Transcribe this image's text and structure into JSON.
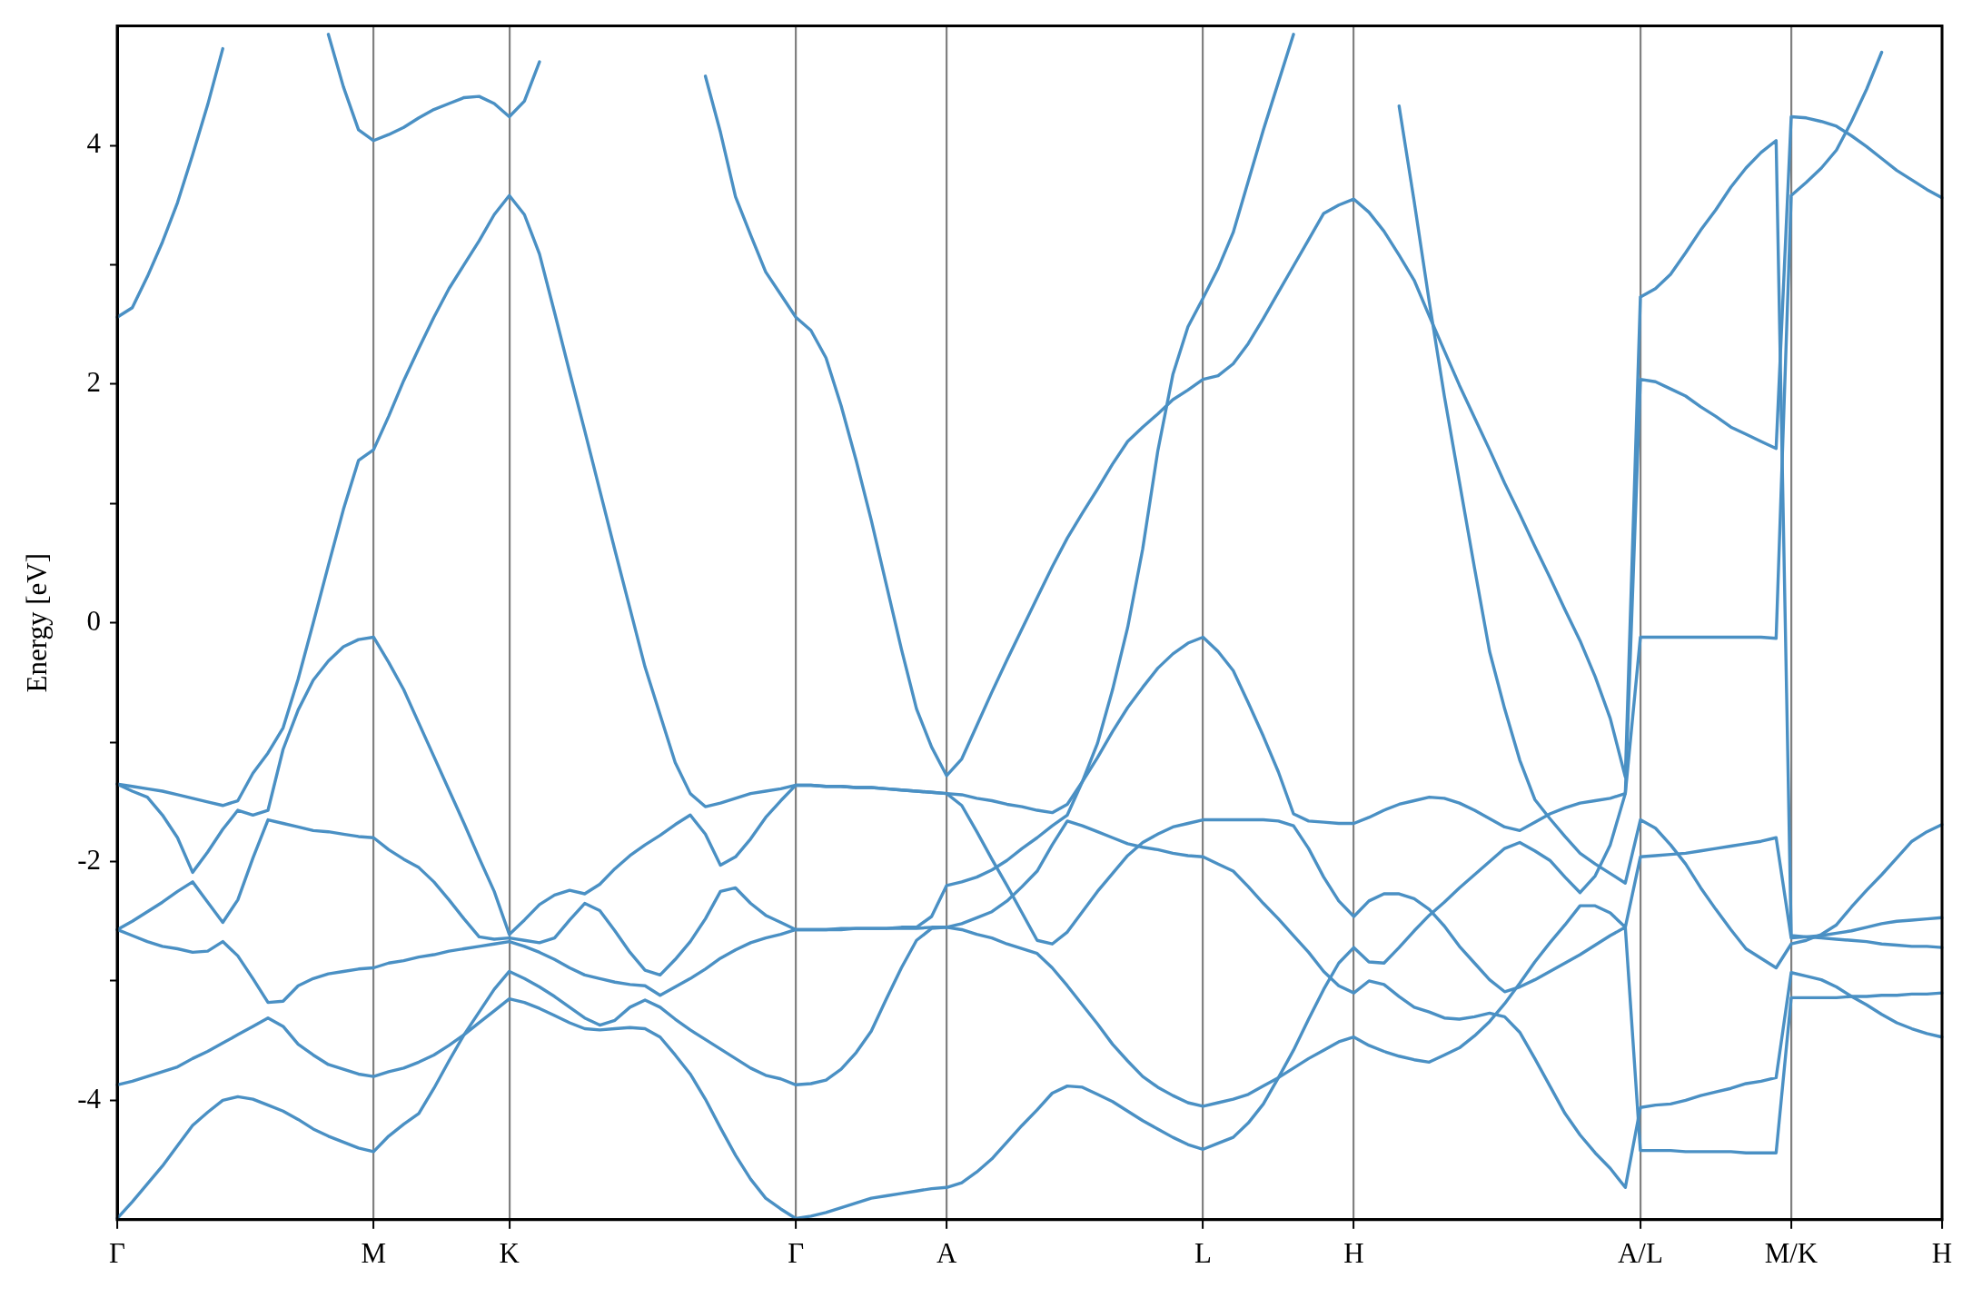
{
  "chart_data": {
    "type": "line",
    "ylabel": "Energy [eV]",
    "ylim": [
      -5,
      5
    ],
    "categories": [
      "Γ",
      null,
      null,
      null,
      null,
      null,
      null,
      null,
      null,
      null,
      null,
      null,
      null,
      null,
      null,
      null,
      null,
      "M",
      null,
      null,
      null,
      null,
      null,
      null,
      null,
      null,
      "K",
      null,
      null,
      null,
      null,
      null,
      null,
      null,
      null,
      null,
      null,
      null,
      null,
      null,
      null,
      null,
      null,
      null,
      null,
      "Γ",
      null,
      null,
      null,
      null,
      null,
      null,
      null,
      null,
      null,
      "A",
      null,
      null,
      null,
      null,
      null,
      null,
      null,
      null,
      null,
      null,
      null,
      null,
      null,
      null,
      null,
      null,
      "L",
      null,
      null,
      null,
      null,
      null,
      null,
      null,
      null,
      null,
      "H",
      null,
      null,
      null,
      null,
      null,
      null,
      null,
      null,
      null,
      null,
      null,
      null,
      null,
      null,
      null,
      null,
      null,
      null,
      "A/L",
      null,
      null,
      null,
      null,
      null,
      null,
      null,
      null,
      null,
      "M/K",
      null,
      null,
      null,
      null,
      null,
      null,
      null,
      null,
      null,
      "H"
    ],
    "yticks": [
      -4,
      {
        "value": -3,
        "label": null
      },
      -2,
      {
        "value": -1,
        "label": null
      },
      0,
      {
        "value": 1,
        "label": null
      },
      2,
      {
        "value": 3,
        "label": null
      },
      4
    ],
    "grid": "x",
    "legend": false,
    "marker": "none",
    "line_style": "solid",
    "series": [
      {
        "color": "#4a90c4",
        "values": [
          -4.99,
          -4.85,
          -4.7,
          -4.55,
          -4.38,
          -4.21,
          -4.1,
          -4.0,
          -3.97,
          -3.99,
          -4.04,
          -4.09,
          -4.16,
          -4.24,
          -4.3,
          -4.35,
          -4.4,
          -4.43,
          -4.3,
          -4.2,
          -4.11,
          -3.9,
          -3.67,
          -3.45,
          -3.35,
          -3.25,
          -3.15,
          -3.18,
          -3.23,
          -3.29,
          -3.35,
          -3.4,
          -3.41,
          -3.4,
          -3.39,
          -3.4,
          -3.47,
          -3.62,
          -3.78,
          -3.99,
          -4.23,
          -4.46,
          -4.66,
          -4.82,
          -4.91,
          -4.99,
          -4.97,
          -4.94,
          -4.9,
          -4.86,
          -4.82,
          -4.8,
          -4.78,
          -4.76,
          -4.74,
          -4.73,
          -4.69,
          -4.6,
          -4.49,
          -4.35,
          -4.21,
          -4.08,
          -3.94,
          -3.88,
          -3.89,
          -3.95,
          -4.01,
          -4.09,
          -4.17,
          -4.24,
          -4.31,
          -4.37,
          -4.41,
          -4.36,
          -4.31,
          -4.19,
          -4.03,
          -3.81,
          -3.58,
          -3.32,
          -3.07,
          -2.85,
          -2.72,
          -2.84,
          -2.85,
          -2.72,
          -2.58,
          -2.45,
          -2.34,
          -2.22,
          -2.11,
          -2.0,
          -1.89,
          -1.84,
          -1.91,
          -1.99,
          -2.13,
          -2.26,
          -2.12,
          -1.86,
          -1.43,
          -0.12,
          -0.12,
          -0.12,
          -0.12,
          -0.12,
          -0.12,
          -0.12,
          -0.12,
          -0.12,
          -0.13,
          3.58,
          3.69,
          3.81,
          3.96,
          4.2,
          4.47,
          4.78,
          null,
          null,
          null,
          null
        ]
      },
      {
        "color": "#4a90c4",
        "values": [
          -3.87,
          -3.84,
          -3.8,
          -3.76,
          -3.72,
          -3.65,
          -3.59,
          -3.52,
          -3.45,
          -3.38,
          -3.31,
          -3.38,
          -3.53,
          -3.62,
          -3.7,
          -3.74,
          -3.78,
          -3.8,
          -3.76,
          -3.73,
          -3.68,
          -3.62,
          -3.54,
          -3.45,
          -3.26,
          -3.07,
          -2.92,
          -2.98,
          -3.05,
          -3.13,
          -3.22,
          -3.31,
          -3.37,
          -3.33,
          -3.22,
          -3.16,
          -3.22,
          -3.32,
          -3.41,
          -3.49,
          -3.57,
          -3.65,
          -3.73,
          -3.79,
          -3.82,
          -3.87,
          -3.86,
          -3.83,
          -3.74,
          -3.6,
          -3.42,
          -3.15,
          -2.89,
          -2.66,
          -2.56,
          -2.55,
          -2.57,
          -2.61,
          -2.64,
          -2.69,
          -2.73,
          -2.77,
          -2.89,
          -3.04,
          -3.2,
          -3.36,
          -3.53,
          -3.67,
          -3.8,
          -3.89,
          -3.96,
          -4.02,
          -4.05,
          -4.02,
          -3.99,
          -3.95,
          -3.88,
          -3.81,
          -3.73,
          -3.65,
          -3.58,
          -3.51,
          -3.47,
          -3.54,
          -3.59,
          -3.63,
          -3.66,
          -3.68,
          -3.62,
          -3.56,
          -3.46,
          -3.34,
          -3.19,
          -3.02,
          -2.84,
          -2.68,
          -2.53,
          -2.37,
          -2.37,
          -2.43,
          -2.55,
          -1.96,
          -1.95,
          -1.94,
          -1.93,
          -1.91,
          -1.89,
          -1.87,
          -1.85,
          -1.83,
          -1.8,
          -2.64,
          -2.63,
          -2.62,
          -2.6,
          -2.58,
          -2.55,
          -2.52,
          -2.5,
          -2.49,
          -2.48,
          -2.47
        ]
      },
      {
        "color": "#4a90c4",
        "values": [
          -2.57,
          -2.62,
          -2.67,
          -2.71,
          -2.73,
          -2.76,
          -2.75,
          -2.67,
          -2.79,
          -2.98,
          -3.18,
          -3.17,
          -3.04,
          -2.98,
          -2.94,
          -2.92,
          -2.9,
          -2.89,
          -2.85,
          -2.83,
          -2.8,
          -2.78,
          -2.75,
          -2.73,
          -2.71,
          -2.69,
          -2.67,
          -2.71,
          -2.76,
          -2.82,
          -2.89,
          -2.95,
          -2.98,
          -3.01,
          -3.03,
          -3.04,
          -3.12,
          -3.05,
          -2.98,
          -2.9,
          -2.81,
          -2.74,
          -2.68,
          -2.64,
          -2.61,
          -2.57,
          -2.57,
          -2.57,
          -2.57,
          -2.56,
          -2.56,
          -2.56,
          -2.56,
          -2.56,
          -2.55,
          -2.55,
          -2.52,
          -2.47,
          -2.42,
          -2.33,
          -2.21,
          -2.08,
          -1.86,
          -1.66,
          -1.7,
          -1.75,
          -1.8,
          -1.85,
          -1.88,
          -1.9,
          -1.93,
          -1.95,
          -1.96,
          -2.02,
          -2.08,
          -2.21,
          -2.35,
          -2.48,
          -2.62,
          -2.76,
          -2.92,
          -3.04,
          -3.1,
          -3.0,
          -3.03,
          -3.13,
          -3.22,
          -3.26,
          -3.31,
          -3.32,
          -3.3,
          -3.27,
          -3.3,
          -3.43,
          -3.65,
          -3.88,
          -4.11,
          -4.29,
          -4.44,
          -4.57,
          -4.73,
          -4.06,
          -4.04,
          -4.03,
          -4.0,
          -3.96,
          -3.93,
          -3.9,
          -3.86,
          -3.84,
          -3.81,
          -2.93,
          -2.96,
          -2.99,
          -3.05,
          -3.13,
          -3.2,
          -3.28,
          -3.35,
          -3.4,
          -3.44,
          -3.47
        ]
      },
      {
        "color": "#4a90c4",
        "values": [
          -2.57,
          -2.5,
          -2.42,
          -2.34,
          -2.25,
          -2.17,
          -2.34,
          -2.51,
          -2.32,
          -1.97,
          -1.65,
          -1.68,
          -1.71,
          -1.74,
          -1.75,
          -1.77,
          -1.79,
          -1.8,
          -1.9,
          -1.98,
          -2.05,
          -2.17,
          -2.32,
          -2.48,
          -2.63,
          -2.65,
          -2.64,
          -2.66,
          -2.68,
          -2.64,
          -2.49,
          -2.35,
          -2.41,
          -2.58,
          -2.76,
          -2.91,
          -2.95,
          -2.82,
          -2.67,
          -2.48,
          -2.25,
          -2.22,
          -2.35,
          -2.45,
          -2.51,
          -2.57,
          -2.57,
          -2.57,
          -2.56,
          -2.56,
          -2.56,
          -2.56,
          -2.55,
          -2.55,
          -2.46,
          -2.2,
          -2.17,
          -2.13,
          -2.07,
          -1.99,
          -1.89,
          -1.8,
          -1.7,
          -1.61,
          -1.33,
          -1.01,
          -0.56,
          -0.04,
          0.62,
          1.44,
          2.08,
          2.48,
          2.72,
          2.97,
          3.27,
          3.7,
          4.13,
          4.53,
          4.93,
          null,
          null,
          null,
          null,
          null,
          null,
          4.33,
          3.53,
          2.69,
          1.9,
          1.18,
          0.46,
          -0.24,
          -0.72,
          -1.15,
          -1.48,
          -1.64,
          -1.79,
          -1.93,
          -2.02,
          -2.1,
          -2.18,
          -1.65,
          -1.72,
          -1.86,
          -2.02,
          -2.22,
          -2.4,
          -2.57,
          -2.73,
          -2.81,
          -2.89,
          -2.69,
          -2.66,
          -2.61,
          -2.53,
          -2.38,
          -2.24,
          -2.11,
          -1.97,
          -1.83,
          -1.75,
          -1.69
        ]
      },
      {
        "color": "#4a90c4",
        "values": [
          -1.35,
          -1.41,
          -1.46,
          -1.61,
          -1.8,
          -2.09,
          -1.92,
          -1.73,
          -1.57,
          -1.61,
          -1.57,
          -1.06,
          -0.73,
          -0.48,
          -0.32,
          -0.2,
          -0.14,
          -0.12,
          -0.33,
          -0.56,
          -0.84,
          -1.12,
          -1.4,
          -1.68,
          -1.97,
          -2.25,
          -2.61,
          -2.49,
          -2.36,
          -2.28,
          -2.24,
          -2.27,
          -2.19,
          -2.06,
          -1.95,
          -1.86,
          -1.78,
          -1.69,
          -1.61,
          -1.77,
          -2.03,
          -1.96,
          -1.81,
          -1.63,
          -1.49,
          -1.36,
          -1.36,
          -1.37,
          -1.37,
          -1.38,
          -1.38,
          -1.39,
          -1.4,
          -1.41,
          -1.42,
          -1.43,
          -1.53,
          -1.75,
          -1.98,
          -2.2,
          -2.43,
          -2.66,
          -2.69,
          -2.59,
          -2.42,
          -2.25,
          -2.1,
          -1.95,
          -1.84,
          -1.77,
          -1.71,
          -1.68,
          -1.65,
          -1.65,
          -1.65,
          -1.65,
          -1.65,
          -1.66,
          -1.7,
          -1.89,
          -2.13,
          -2.33,
          -2.46,
          -2.33,
          -2.27,
          -2.27,
          -2.31,
          -2.4,
          -2.54,
          -2.71,
          -2.85,
          -2.99,
          -3.09,
          -3.05,
          -2.99,
          -2.92,
          -2.85,
          -2.78,
          -2.7,
          -2.62,
          -2.55,
          -4.42,
          -4.42,
          -4.42,
          -4.43,
          -4.43,
          -4.43,
          -4.43,
          -4.44,
          -4.44,
          -4.44,
          -3.14,
          -3.14,
          -3.14,
          -3.14,
          -3.13,
          -3.13,
          -3.12,
          -3.12,
          -3.11,
          -3.11,
          -3.1
        ]
      },
      {
        "color": "#4a90c4",
        "values": [
          -1.35,
          -1.37,
          -1.39,
          -1.41,
          -1.44,
          -1.47,
          -1.5,
          -1.53,
          -1.49,
          -1.26,
          -1.09,
          -0.88,
          -0.47,
          0.0,
          0.48,
          0.95,
          1.36,
          1.45,
          1.73,
          2.03,
          2.3,
          2.56,
          2.8,
          3.0,
          3.2,
          3.42,
          3.58,
          3.42,
          3.09,
          2.6,
          2.1,
          1.61,
          1.11,
          0.61,
          0.12,
          -0.37,
          -0.77,
          -1.17,
          -1.43,
          -1.54,
          -1.51,
          -1.47,
          -1.43,
          -1.41,
          -1.39,
          -1.36,
          -1.36,
          -1.37,
          -1.37,
          -1.38,
          -1.38,
          -1.39,
          -1.4,
          -1.41,
          -1.42,
          -1.43,
          -1.44,
          -1.47,
          -1.49,
          -1.52,
          -1.54,
          -1.57,
          -1.59,
          -1.52,
          -1.33,
          -1.13,
          -0.91,
          -0.71,
          -0.54,
          -0.38,
          -0.26,
          -0.17,
          -0.12,
          -0.24,
          -0.4,
          -0.67,
          -0.95,
          -1.25,
          -1.6,
          -1.66,
          -1.67,
          -1.68,
          -1.68,
          -1.63,
          -1.57,
          -1.52,
          -1.49,
          -1.46,
          -1.47,
          -1.51,
          -1.57,
          -1.64,
          -1.71,
          -1.74,
          -1.67,
          -1.6,
          -1.55,
          -1.51,
          -1.49,
          -1.47,
          -1.43,
          2.04,
          2.02,
          1.96,
          1.9,
          1.81,
          1.73,
          1.64,
          1.58,
          1.52,
          1.46,
          4.24,
          4.23,
          4.2,
          4.16,
          4.08,
          3.99,
          3.89,
          3.79,
          3.71,
          3.63,
          3.56
        ]
      },
      {
        "color": "#4a90c4",
        "values": [
          2.56,
          2.64,
          2.9,
          3.19,
          3.52,
          3.92,
          4.34,
          4.81,
          null,
          null,
          null,
          null,
          null,
          null,
          4.93,
          4.49,
          4.13,
          4.04,
          4.09,
          4.15,
          4.23,
          4.3,
          4.35,
          4.4,
          4.41,
          4.35,
          4.24,
          4.37,
          4.7,
          null,
          null,
          null,
          null,
          null,
          null,
          null,
          null,
          null,
          null,
          4.58,
          4.11,
          3.57,
          3.25,
          2.94,
          2.75,
          2.56,
          2.45,
          2.22,
          1.82,
          1.36,
          0.86,
          0.32,
          -0.22,
          -0.72,
          -1.04,
          -1.28,
          -1.14,
          -0.86,
          -0.58,
          -0.31,
          -0.05,
          0.21,
          0.47,
          0.71,
          0.92,
          1.12,
          1.33,
          1.52,
          1.64,
          1.75,
          1.87,
          1.95,
          2.04,
          2.07,
          2.17,
          2.34,
          2.55,
          2.77,
          2.99,
          3.21,
          3.43,
          3.5,
          3.55,
          3.44,
          3.28,
          3.08,
          2.87,
          2.57,
          2.28,
          1.99,
          1.72,
          1.45,
          1.17,
          0.91,
          0.64,
          0.38,
          0.11,
          -0.15,
          -0.45,
          -0.8,
          -1.29,
          2.73,
          2.8,
          2.92,
          3.1,
          3.29,
          3.46,
          3.65,
          3.81,
          3.94,
          4.04,
          -2.62,
          -2.63,
          -2.64,
          -2.65,
          -2.66,
          -2.67,
          -2.69,
          -2.7,
          -2.71,
          -2.71,
          -2.72
        ]
      }
    ]
  }
}
